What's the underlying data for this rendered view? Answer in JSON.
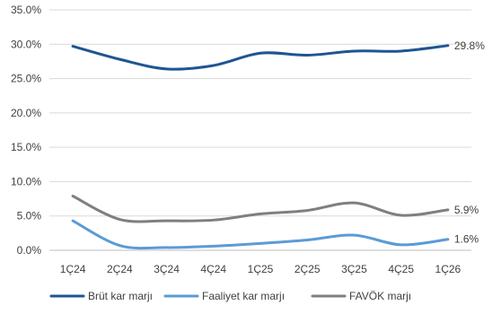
{
  "chart_data": {
    "type": "line",
    "title": "",
    "xlabel": "",
    "ylabel": "",
    "categories": [
      "1Ç24",
      "2Ç24",
      "3Ç24",
      "4Ç24",
      "1Ç25",
      "2Ç25",
      "3Ç25",
      "4Ç25",
      "1Ç26"
    ],
    "ylim": [
      0,
      35
    ],
    "y_ticks": [
      "0.0%",
      "5.0%",
      "10.0%",
      "15.0%",
      "20.0%",
      "25.0%",
      "30.0%",
      "35.0%"
    ],
    "grid": "horizontal",
    "legend_position": "bottom",
    "smooth": true,
    "series": [
      {
        "name": "Brüt kar marjı",
        "color": "#1f5592",
        "values": [
          29.7,
          27.8,
          26.4,
          26.9,
          28.7,
          28.4,
          29.0,
          29.0,
          29.8
        ],
        "end_label": "29.8%"
      },
      {
        "name": "Faaliyet kar marjı",
        "color": "#5b9bd5",
        "values": [
          4.3,
          0.7,
          0.4,
          0.6,
          1.0,
          1.5,
          2.2,
          0.8,
          1.6
        ],
        "end_label": "1.6%"
      },
      {
        "name": "FAVÖK marjı",
        "color": "#7f7f7f",
        "values": [
          7.9,
          4.5,
          4.3,
          4.4,
          5.3,
          5.8,
          6.9,
          5.1,
          5.9
        ],
        "end_label": "5.9%"
      }
    ]
  }
}
